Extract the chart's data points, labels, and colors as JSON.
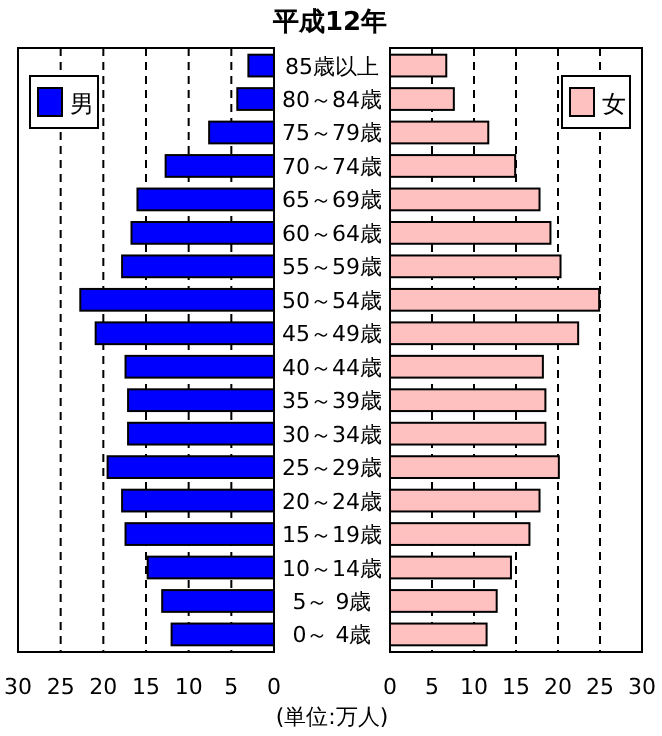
{
  "chart_data": [
    {
      "type": "bar",
      "orientation": "horizontal",
      "title": "平成12年",
      "annotations": [
        "(単位:万人)"
      ],
      "categories": [
        "85歳以上",
        "80～84歳",
        "75～79歳",
        "70～74歳",
        "65～69歳",
        "60～64歳",
        "55～59歳",
        "50～54歳",
        "45～49歳",
        "40～44歳",
        "35～39歳",
        "30～34歳",
        "25～29歳",
        "20～24歳",
        "15～19歳",
        "10～14歳",
        "5～ 9歳",
        "0～ 4歳"
      ],
      "series": [
        {
          "name": "男",
          "color": "#0000ff",
          "values": [
            3.0,
            4.3,
            7.6,
            12.7,
            16.0,
            16.7,
            17.8,
            22.7,
            20.9,
            17.4,
            17.1,
            17.1,
            19.5,
            17.8,
            17.4,
            14.8,
            13.1,
            12.0
          ]
        }
      ],
      "xlim": [
        30,
        0
      ],
      "xticks": [
        30,
        25,
        20,
        15,
        10,
        5,
        0
      ],
      "grid": "x",
      "legend": "top left"
    },
    {
      "type": "bar",
      "orientation": "horizontal",
      "categories": [
        null,
        null,
        null,
        null,
        null,
        null,
        null,
        null,
        null,
        null,
        null,
        null,
        null,
        null,
        null,
        null,
        null,
        null
      ],
      "series": [
        {
          "name": "女",
          "color": "#ffc0c0",
          "values": [
            6.7,
            7.6,
            11.7,
            14.9,
            17.8,
            19.1,
            20.3,
            24.9,
            22.4,
            18.2,
            18.5,
            18.5,
            20.1,
            17.8,
            16.6,
            14.4,
            12.7,
            11.5
          ]
        }
      ],
      "xlim": [
        0,
        30
      ],
      "xticks": [
        0,
        5,
        10,
        15,
        20,
        25,
        30
      ],
      "grid": "x",
      "legend": "top right"
    }
  ]
}
